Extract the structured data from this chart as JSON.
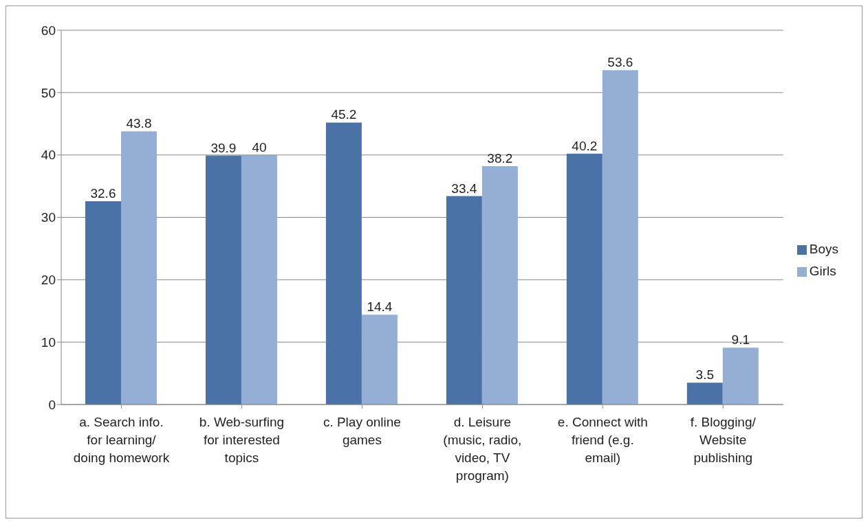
{
  "chart_data": {
    "type": "bar",
    "categories": [
      "a. Search info. for learning/ doing homework",
      "b. Web-surfing for interested topics",
      "c. Play online games",
      "d. Leisure (music, radio, video, TV program)",
      "e. Connect with friend (e.g. email)",
      "f. Blogging/ Website publishing"
    ],
    "series": [
      {
        "name": "Boys",
        "color": "#4a72a6",
        "values": [
          32.6,
          39.9,
          45.2,
          33.4,
          40.2,
          3.5
        ]
      },
      {
        "name": "Girls",
        "color": "#95aed3",
        "values": [
          43.8,
          40,
          14.4,
          38.2,
          53.6,
          9.1
        ]
      }
    ],
    "ylim": [
      0,
      60
    ],
    "yticks": [
      0,
      10,
      20,
      30,
      40,
      50,
      60
    ],
    "grid": "y",
    "legend": "right",
    "data_labels": true
  }
}
